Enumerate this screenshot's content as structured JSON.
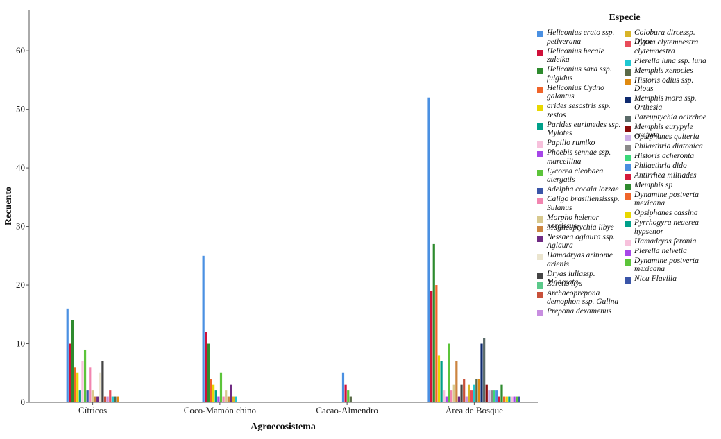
{
  "chart_data": {
    "type": "bar",
    "xlabel": "Agroecosistema",
    "ylabel": "Recuento",
    "legend_title": "Especie",
    "legend_placement": "right",
    "grid": false,
    "ylim": [
      0,
      67
    ],
    "yticks": [
      0,
      10,
      20,
      30,
      40,
      50,
      60
    ],
    "categories": [
      "Cítricos",
      "Coco-Mamón chino",
      "Cacao-Almendro",
      "Área de Bosque"
    ],
    "series": [
      {
        "name": "Heliconius erato ssp. petiverana",
        "color": "#4a90e2",
        "values": [
          16,
          25,
          5,
          52
        ]
      },
      {
        "name": "Heliconius hecale zuleika",
        "color": "#d0103a",
        "values": [
          10,
          12,
          3,
          19
        ]
      },
      {
        "name": "Heliconius sara ssp. fulgidus",
        "color": "#2e8b2e",
        "values": [
          14,
          10,
          0,
          27
        ]
      },
      {
        "name": "Heliconius Cydno galantus",
        "color": "#f0652a",
        "values": [
          6,
          4,
          0,
          20
        ]
      },
      {
        "name": "arides sesostris ssp. zestos",
        "color": "#e8d800",
        "values": [
          5,
          3,
          0,
          8
        ]
      },
      {
        "name": "Parides eurimedes ssp. Mylotes",
        "color": "#00a08a",
        "values": [
          2,
          2,
          0,
          7
        ]
      },
      {
        "name": "Papilio rumiko",
        "color": "#f7c1dc",
        "values": [
          7,
          0,
          0,
          2
        ]
      },
      {
        "name": "Phoebis sennae ssp. marcellina",
        "color": "#a646e8",
        "values": [
          0,
          1,
          0,
          1
        ]
      },
      {
        "name": "Lycorea cleobaea atergatis",
        "color": "#5cc43a",
        "values": [
          9,
          5,
          2,
          10
        ]
      },
      {
        "name": "Adelpha cocala lorzae",
        "color": "#3a55a8",
        "values": [
          2,
          0,
          0,
          0
        ]
      },
      {
        "name": "Caligo brasiliensisssp. Sulanus",
        "color": "#f285b0",
        "values": [
          6,
          1,
          0,
          2
        ]
      },
      {
        "name": "Morpho helenor narcissus",
        "color": "#d8c98e",
        "values": [
          2,
          2,
          0,
          3
        ]
      },
      {
        "name": "Magneuptychia libye",
        "color": "#cc8540",
        "values": [
          1,
          1,
          0,
          7
        ]
      },
      {
        "name": "Nessaea aglaura ssp. Aglaura",
        "color": "#6f2a82",
        "values": [
          1,
          3,
          0,
          1
        ]
      },
      {
        "name": "Hamadryas arinome arienis",
        "color": "#ebe5cf",
        "values": [
          5,
          0,
          0,
          0
        ]
      },
      {
        "name": "Dryas iuliassp. Moderata",
        "color": "#444444",
        "values": [
          7,
          0,
          0,
          3
        ]
      },
      {
        "name": "Zaretis itys",
        "color": "#5bc98a",
        "values": [
          0,
          0,
          0,
          0
        ]
      },
      {
        "name": "Archaeoprepona demophon ssp. Gulina",
        "color": "#c8503a",
        "values": [
          1,
          0,
          0,
          4
        ]
      },
      {
        "name": "Prepona dexamenus",
        "color": "#c88ee0",
        "values": [
          1,
          0,
          0,
          1
        ]
      },
      {
        "name": "Colobura dircessp. Dirce",
        "color": "#d8b428",
        "values": [
          0,
          1,
          0,
          3
        ]
      },
      {
        "name": "Hypna clytemnestra clytemnestra",
        "color": "#e84c5a",
        "values": [
          2,
          0,
          0,
          2
        ]
      },
      {
        "name": "Pierella luna ssp. luna",
        "color": "#1ec8d2",
        "values": [
          1,
          1,
          0,
          3
        ]
      },
      {
        "name": "Memphis xenocles",
        "color": "#5a6a48",
        "values": [
          1,
          0,
          1,
          4
        ]
      },
      {
        "name": "Historis odius ssp. Dious",
        "color": "#e08a10",
        "values": [
          1,
          0,
          0,
          4
        ]
      },
      {
        "name": "Memphis mora ssp. Orthesia",
        "color": "#0e2a6e",
        "values": [
          0,
          0,
          0,
          10
        ]
      },
      {
        "name": "Pareuptychia ocirrhoe",
        "color": "#5a6a68",
        "values": [
          0,
          0,
          0,
          11
        ]
      },
      {
        "name": "Memphis eurypyle confusa",
        "color": "#8b0a0a",
        "values": [
          0,
          0,
          0,
          3
        ]
      },
      {
        "name": "Opsiphanes quiteria",
        "color": "#cbaee5",
        "values": [
          0,
          0,
          0,
          2
        ]
      },
      {
        "name": "Philaethria diatonica",
        "color": "#8a8a8a",
        "values": [
          0,
          0,
          0,
          2
        ]
      },
      {
        "name": "Historis acheronta",
        "color": "#3ad87a",
        "values": [
          0,
          0,
          0,
          2
        ]
      },
      {
        "name": "Philaethria dido",
        "color": "#4a8ee0",
        "values": [
          0,
          0,
          0,
          2
        ]
      },
      {
        "name": "Antirrhea miltiades",
        "color": "#d41a3a",
        "values": [
          0,
          0,
          0,
          1
        ]
      },
      {
        "name": "Memphis sp",
        "color": "#2e8b2e",
        "values": [
          0,
          0,
          0,
          3
        ]
      },
      {
        "name": "Dynamine postverta mexicana",
        "color": "#f0652a",
        "values": [
          0,
          0,
          0,
          1
        ]
      },
      {
        "name": "Opsiphanes cassina",
        "color": "#e8d800",
        "values": [
          0,
          0,
          0,
          1
        ]
      },
      {
        "name": "Pyrrhogyra neaerea hypsenor",
        "color": "#00a08a",
        "values": [
          0,
          0,
          0,
          1
        ]
      },
      {
        "name": "Hamadryas feronia",
        "color": "#f7c1dc",
        "values": [
          0,
          0,
          0,
          1
        ]
      },
      {
        "name": "Pierella helvetia",
        "color": "#a646e8",
        "values": [
          0,
          0,
          0,
          1
        ]
      },
      {
        "name": "Dynamine postverta mexicana",
        "color": "#5cc43a",
        "values": [
          0,
          0,
          0,
          1
        ]
      },
      {
        "name": "Nica Flavilla",
        "color": "#3a55a8",
        "values": [
          0,
          0,
          0,
          1
        ]
      }
    ]
  }
}
